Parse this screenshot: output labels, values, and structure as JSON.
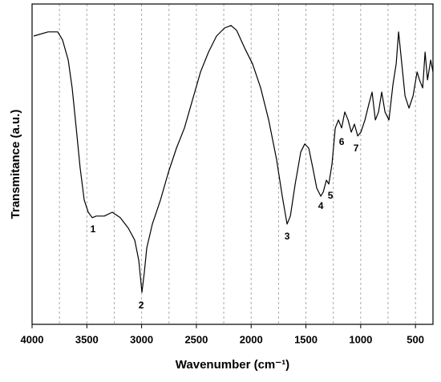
{
  "chart_data": {
    "type": "line",
    "xlabel": "Wavenumber (cm⁻¹)",
    "ylabel": "Transmitance (a.u.)",
    "color": "#000000",
    "x": [
      3985,
      3854,
      3766,
      3722,
      3670,
      3634,
      3597,
      3561,
      3524,
      3487,
      3451,
      3414,
      3341,
      3268,
      3195,
      3121,
      3063,
      3026,
      2997,
      2975,
      2953,
      2902,
      2828,
      2755,
      2682,
      2609,
      2536,
      2462,
      2389,
      2316,
      2243,
      2184,
      2133,
      2060,
      1987,
      1913,
      1840,
      1767,
      1716,
      1672,
      1642,
      1598,
      1547,
      1511,
      1474,
      1437,
      1401,
      1364,
      1342,
      1313,
      1291,
      1262,
      1232,
      1203,
      1174,
      1145,
      1115,
      1086,
      1057,
      1027,
      998,
      961,
      925,
      896,
      866,
      837,
      808,
      778,
      742,
      705,
      676,
      654,
      632,
      595,
      559,
      522,
      485,
      463,
      434,
      412,
      390,
      361,
      340
    ],
    "values": [
      90,
      91.3,
      91.3,
      88.8,
      82.5,
      73.8,
      61.3,
      48.8,
      38.8,
      35,
      33.3,
      33.8,
      33.8,
      35,
      33.3,
      30,
      26.3,
      20,
      10,
      16.3,
      23.8,
      31.3,
      38.8,
      47.5,
      55,
      61.3,
      70,
      78.8,
      85,
      90,
      92.5,
      93.3,
      91.8,
      86.3,
      81.3,
      73.8,
      63.8,
      51.3,
      40,
      31.3,
      33.8,
      43.8,
      53.8,
      56.3,
      55,
      48.8,
      42.5,
      40,
      41.3,
      45,
      43.8,
      50,
      61.3,
      63.8,
      61.3,
      66.3,
      63.8,
      60,
      62.5,
      58.8,
      60,
      63.8,
      68.8,
      72.5,
      63.8,
      66.3,
      72.5,
      66.3,
      63.8,
      75,
      81.3,
      91.3,
      83.8,
      71.3,
      67.5,
      71.3,
      78.8,
      76.3,
      73.8,
      85,
      76.3,
      82.5,
      78.8
    ],
    "xlim": [
      4000,
      340
    ],
    "ylim": [
      0,
      100
    ],
    "xticks": [
      4000,
      3500,
      3000,
      2500,
      2000,
      1500,
      1000,
      500
    ],
    "xgrid": [
      3750,
      3500,
      3250,
      3000,
      2750,
      2500,
      2250,
      2000,
      1750,
      1500,
      1250,
      1000,
      750,
      500
    ],
    "annotations": [
      {
        "text": "1",
        "x": 3444,
        "y": 29.5
      },
      {
        "text": "2",
        "x": 3004,
        "y": 5.8
      },
      {
        "text": "3",
        "x": 1672,
        "y": 27.3
      },
      {
        "text": "4",
        "x": 1364,
        "y": 36.8
      },
      {
        "text": "5",
        "x": 1276,
        "y": 40
      },
      {
        "text": "6",
        "x": 1174,
        "y": 56.8
      },
      {
        "text": "7",
        "x": 1042,
        "y": 54.8
      }
    ]
  }
}
